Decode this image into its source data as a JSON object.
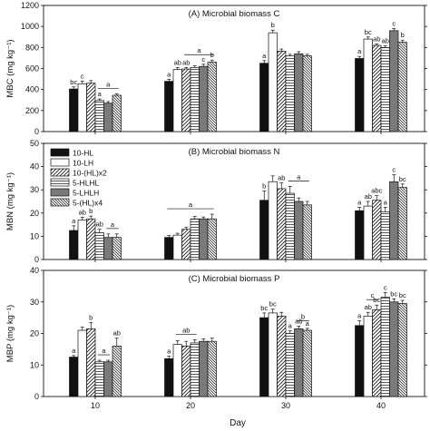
{
  "figure": {
    "xlabel": "Day"
  },
  "colors": {
    "bar_stroke": "#111111",
    "axis": "#111111",
    "background": "#ffffff"
  },
  "legend": {
    "panel": 1,
    "entries": [
      {
        "label": "10-HL",
        "pattern": "solid-black"
      },
      {
        "label": "10-LH",
        "pattern": "white"
      },
      {
        "label": "10-(HL)x2",
        "pattern": "diag-fwd"
      },
      {
        "label": "5-HLHL",
        "pattern": "horiz"
      },
      {
        "label": "5-LHLH",
        "pattern": "gray"
      },
      {
        "label": "5-(HL)x4",
        "pattern": "diag-back"
      }
    ]
  },
  "chart_data": [
    {
      "type": "bar",
      "title": "(A) Microbial biomass C",
      "ylabel": "MBC (mg kg⁻¹)",
      "ylim": [
        0,
        1200
      ],
      "yticks": [
        0,
        200,
        400,
        600,
        800,
        1000,
        1200
      ],
      "categories": [
        "10",
        "20",
        "30",
        "40"
      ],
      "series": [
        {
          "name": "10-HL",
          "values": [
            405,
            478,
            650,
            695
          ],
          "errors": [
            20,
            20,
            25,
            20
          ]
        },
        {
          "name": "10-LH",
          "values": [
            455,
            590,
            940,
            880
          ],
          "errors": [
            25,
            20,
            25,
            20
          ]
        },
        {
          "name": "10-(HL)x2",
          "values": [
            460,
            595,
            765,
            820
          ],
          "errors": [
            25,
            15,
            20,
            15
          ]
        },
        {
          "name": "5-HLHL",
          "values": [
            295,
            610,
            720,
            800
          ],
          "errors": [
            15,
            15,
            15,
            15
          ]
        },
        {
          "name": "5-LHLH",
          "values": [
            270,
            620,
            740,
            960
          ],
          "errors": [
            15,
            20,
            20,
            20
          ]
        },
        {
          "name": "5-(HL)x4",
          "values": [
            345,
            660,
            720,
            850
          ],
          "errors": [
            15,
            20,
            15,
            20
          ]
        }
      ],
      "significance": [
        [
          "bc",
          "a",
          "a",
          "a"
        ],
        [
          "c",
          "ab",
          "b",
          "bc"
        ],
        [
          "",
          "ab",
          "",
          "ab"
        ],
        [
          "a",
          "",
          "",
          "ab"
        ],
        [
          "",
          "c",
          "",
          "c"
        ],
        [
          "",
          "b",
          "",
          "b"
        ]
      ],
      "group_brackets": [
        [
          3,
          5,
          "a"
        ],
        [
          2,
          5,
          "a"
        ]
      ]
    },
    {
      "type": "bar",
      "title": "(B) Microbial biomass N",
      "ylabel": "MBN (mg kg⁻¹)",
      "ylim": [
        0,
        50
      ],
      "yticks": [
        0,
        10,
        20,
        30,
        40,
        50
      ],
      "categories": [
        "10",
        "20",
        "30",
        "40"
      ],
      "series": [
        {
          "name": "10-HL",
          "values": [
            12.5,
            9.5,
            25.5,
            21
          ],
          "errors": [
            2,
            0.8,
            4,
            1.5
          ]
        },
        {
          "name": "10-LH",
          "values": [
            17,
            10.5,
            33.5,
            23
          ],
          "errors": [
            1.2,
            0.8,
            2.5,
            2
          ]
        },
        {
          "name": "10-(HL)x2",
          "values": [
            17.5,
            13,
            30.5,
            25.5
          ],
          "errors": [
            1.2,
            0.8,
            2.5,
            2
          ]
        },
        {
          "name": "5-HLHL",
          "values": [
            11.5,
            17.5,
            28.5,
            20.5
          ],
          "errors": [
            1.5,
            1,
            3,
            2
          ]
        },
        {
          "name": "5-LHLH",
          "values": [
            9.5,
            17.5,
            25,
            33.5
          ],
          "errors": [
            1.5,
            0.8,
            1.5,
            3
          ]
        },
        {
          "name": "5-(HL)x4",
          "values": [
            9.5,
            17.5,
            23.5,
            31
          ],
          "errors": [
            1.5,
            2,
            1.5,
            1.5
          ]
        }
      ],
      "significance": [
        [
          "a",
          "",
          "b",
          "a"
        ],
        [
          "ab",
          "",
          "",
          "ab"
        ],
        [
          "b",
          "",
          "ab",
          "abc"
        ],
        [
          "ab",
          "",
          "",
          "a"
        ],
        [
          "",
          "",
          "",
          "c"
        ],
        [
          "",
          "",
          "",
          "bc"
        ]
      ],
      "group_brackets": [
        [
          4,
          5,
          "a"
        ],
        [
          0,
          5,
          "a"
        ],
        [
          3,
          5,
          "a"
        ]
      ]
    },
    {
      "type": "bar",
      "title": "(C) Microbial biomass P",
      "ylabel": "MBP (mg kg⁻¹)",
      "ylim": [
        0,
        40
      ],
      "yticks": [
        0,
        10,
        20,
        30,
        40
      ],
      "categories": [
        "10",
        "20",
        "30",
        "40"
      ],
      "series": [
        {
          "name": "10-HL",
          "values": [
            12.5,
            12,
            25,
            22.5
          ],
          "errors": [
            0.5,
            0.8,
            1.5,
            1.5
          ]
        },
        {
          "name": "10-LH",
          "values": [
            21,
            16.5,
            26.5,
            25.5
          ],
          "errors": [
            1,
            1.2,
            1.2,
            1.2
          ]
        },
        {
          "name": "10-(HL)x2",
          "values": [
            21.5,
            16,
            25.5,
            27.5
          ],
          "errors": [
            2,
            1.5,
            1.2,
            1.5
          ]
        },
        {
          "name": "5-HLHL",
          "values": [
            11,
            17,
            20,
            31.5
          ],
          "errors": [
            0.5,
            1,
            0.8,
            1.5
          ]
        },
        {
          "name": "5-LHLH",
          "values": [
            11,
            17.5,
            21.5,
            30
          ],
          "errors": [
            0.5,
            0.8,
            0.8,
            1
          ]
        },
        {
          "name": "5-(HL)x4",
          "values": [
            16,
            17.5,
            21,
            29.5
          ],
          "errors": [
            2.5,
            1,
            0.6,
            1
          ]
        }
      ],
      "significance": [
        [
          "a",
          "a",
          "bc",
          "a"
        ],
        [
          "",
          "",
          "bc",
          "ab"
        ],
        [
          "b",
          "",
          "",
          "bc"
        ],
        [
          "",
          "",
          "a",
          "c"
        ],
        [
          "",
          "",
          "ab",
          "bc"
        ],
        [
          "ab",
          "",
          "a",
          "bc"
        ]
      ],
      "group_brackets": [
        [
          3,
          4,
          "a"
        ],
        [
          1,
          3,
          "ab"
        ],
        [
          4,
          5,
          "b"
        ],
        [
          1,
          2,
          "c"
        ]
      ]
    }
  ]
}
